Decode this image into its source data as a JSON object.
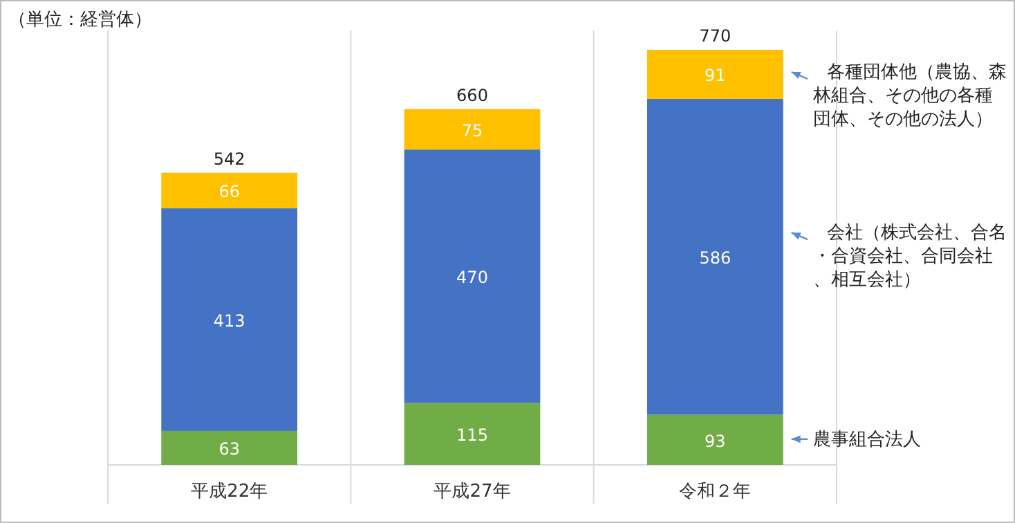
{
  "chart_data": {
    "type": "bar",
    "stacked": true,
    "categories": [
      "平成22年",
      "平成27年",
      "令和２年"
    ],
    "series": [
      {
        "name": "農事組合法人",
        "color": "#70ad47",
        "values": [
          63,
          115,
          93
        ]
      },
      {
        "name": "会社（株式会社、合名・合資会社、合同会社、相互会社）",
        "color": "#4472c4",
        "values": [
          413,
          470,
          586
        ]
      },
      {
        "name": "各種団体他（農協、森林組合、その他の各種団体、その他の法人）",
        "color": "#ffc000",
        "values": [
          66,
          75,
          91
        ]
      }
    ],
    "data_labels": true,
    "totals": [
      "542",
      "660",
      "770"
    ],
    "grid": "x",
    "legend": "right",
    "annotations": [
      "（単位：経営体）"
    ]
  }
}
